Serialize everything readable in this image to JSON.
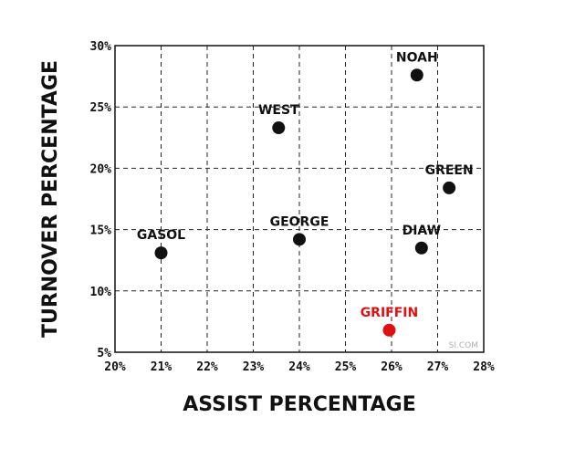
{
  "chart_data": {
    "type": "scatter",
    "xlabel": "ASSIST PERCENTAGE",
    "ylabel": "TURNOVER PERCENTAGE",
    "xlim": [
      20,
      28
    ],
    "ylim": [
      5,
      30
    ],
    "x_ticks": [
      20,
      21,
      22,
      23,
      24,
      25,
      26,
      27,
      28
    ],
    "y_ticks": [
      5,
      10,
      15,
      20,
      25,
      30
    ],
    "x_tick_labels": [
      "20%",
      "21%",
      "22%",
      "23%",
      "24%",
      "25%",
      "26%",
      "27%",
      "28%"
    ],
    "y_tick_labels": [
      "5%",
      "10%",
      "15%",
      "20%",
      "25%",
      "30%"
    ],
    "grid": true,
    "points": [
      {
        "label": "NOAH",
        "x": 26.55,
        "y": 27.6,
        "color": "#111111",
        "label_anchor": "above"
      },
      {
        "label": "WEST",
        "x": 23.55,
        "y": 23.3,
        "color": "#111111",
        "label_anchor": "above"
      },
      {
        "label": "GREEN",
        "x": 27.25,
        "y": 18.4,
        "color": "#111111",
        "label_anchor": "above"
      },
      {
        "label": "GASOL",
        "x": 21.0,
        "y": 13.1,
        "color": "#111111",
        "label_anchor": "above"
      },
      {
        "label": "GEORGE",
        "x": 24.0,
        "y": 14.2,
        "color": "#111111",
        "label_anchor": "above"
      },
      {
        "label": "DIAW",
        "x": 26.65,
        "y": 13.5,
        "color": "#111111",
        "label_anchor": "above"
      },
      {
        "label": "GRIFFIN",
        "x": 25.95,
        "y": 6.8,
        "color": "#dd1111",
        "label_anchor": "above"
      }
    ]
  },
  "credit": "SI.COM"
}
